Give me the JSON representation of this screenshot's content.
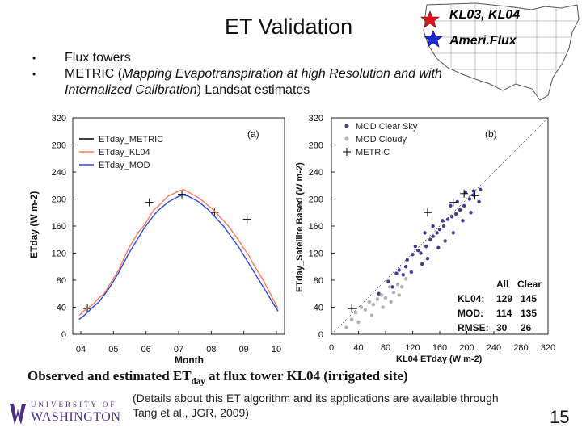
{
  "slide": {
    "title": "ET Validation",
    "bullets": [
      {
        "text": "Flux towers"
      },
      {
        "pre": "METRIC (",
        "italic": "Mapping Evapotranspiration at high Resolution and with Internalized Calibration",
        "post": ") Landsat estimates"
      }
    ],
    "caption": {
      "pre": "Observed and estimated ET",
      "sub": "day",
      "post": " at flux tower KL04 (irrigated site)"
    },
    "details": "(Details about this ET algorithm and its applications are available through Tang et al., JGR, 2009)",
    "page_number": "15",
    "logo": {
      "top": "UNIVERSITY OF",
      "bottom": "WASHINGTON"
    }
  },
  "map": {
    "red_label": "KL03, KL04",
    "blue_label": "Ameri.Flux",
    "colors": {
      "red_star": "#e0141e",
      "blue_star": "#1a2ad8"
    }
  },
  "chart_data": [
    {
      "type": "line",
      "panel": "(a)",
      "xlabel": "Month",
      "ylabel": "ETday (W m-2)",
      "x_ticks": [
        "04",
        "05",
        "06",
        "07",
        "08",
        "09",
        "10"
      ],
      "y_ticks": [
        0,
        40,
        80,
        120,
        160,
        200,
        240,
        280,
        320
      ],
      "ylim": [
        0,
        320
      ],
      "series": [
        {
          "name": "ETday_METRIC",
          "color": "#000000",
          "points": [
            [
              0.2,
              38
            ],
            [
              2.1,
              195
            ],
            [
              3.1,
              207
            ],
            [
              4.1,
              180
            ],
            [
              5.1,
              170
            ]
          ]
        },
        {
          "name": "ETday_KL04",
          "color": "#ff7a5a",
          "values": [
            28,
            35,
            40,
            46,
            54,
            60,
            72,
            84,
            96,
            112,
            128,
            140,
            152,
            160,
            172,
            184,
            190,
            198,
            205,
            208,
            212,
            214,
            210,
            206,
            202,
            196,
            190,
            184,
            176,
            168,
            160,
            150,
            140,
            128,
            118,
            104,
            92,
            80,
            66,
            52,
            38
          ]
        },
        {
          "name": "ETday_MOD",
          "color": "#2a4bd8",
          "values": [
            22,
            28,
            35,
            42,
            48,
            58,
            68,
            80,
            92,
            106,
            120,
            132,
            144,
            156,
            166,
            176,
            184,
            190,
            196,
            200,
            204,
            206,
            204,
            200,
            196,
            190,
            184,
            176,
            168,
            160,
            150,
            140,
            130,
            118,
            106,
            94,
            82,
            70,
            58,
            46,
            34
          ]
        }
      ]
    },
    {
      "type": "scatter",
      "panel": "(b)",
      "xlabel": "KL04 ETday (W m-2)",
      "ylabel": "ETday_Satellite Based (W m-2)",
      "x_ticks": [
        0,
        40,
        80,
        120,
        160,
        200,
        240,
        280,
        320
      ],
      "y_ticks": [
        0,
        40,
        80,
        120,
        160,
        200,
        240,
        280,
        320
      ],
      "xlim": [
        0,
        320
      ],
      "ylim": [
        0,
        320
      ],
      "series": [
        {
          "name": "MOD Clear Sky",
          "color": "#4a3a8e",
          "points": [
            [
              70,
              60
            ],
            [
              84,
              78
            ],
            [
              96,
              90
            ],
            [
              100,
              95
            ],
            [
              112,
              110
            ],
            [
              120,
              118
            ],
            [
              128,
              124
            ],
            [
              132,
              120
            ],
            [
              140,
              130
            ],
            [
              146,
              140
            ],
            [
              150,
              145
            ],
            [
              156,
              150
            ],
            [
              160,
              155
            ],
            [
              166,
              160
            ],
            [
              172,
              170
            ],
            [
              178,
              174
            ],
            [
              184,
              178
            ],
            [
              190,
              184
            ],
            [
              196,
              190
            ],
            [
              204,
              200
            ],
            [
              210,
              206
            ],
            [
              220,
              214
            ],
            [
              110,
              100
            ],
            [
              124,
              130
            ],
            [
              138,
              150
            ],
            [
              150,
              160
            ],
            [
              164,
              168
            ],
            [
              176,
              190
            ],
            [
              186,
              196
            ],
            [
              198,
              210
            ],
            [
              210,
              212
            ],
            [
              106,
              88
            ],
            [
              90,
              70
            ],
            [
              118,
              92
            ],
            [
              134,
              104
            ],
            [
              142,
              112
            ],
            [
              158,
              128
            ],
            [
              168,
              138
            ],
            [
              180,
              150
            ],
            [
              194,
              168
            ],
            [
              206,
              180
            ],
            [
              218,
              196
            ]
          ]
        },
        {
          "name": "MOD Cloudy",
          "color": "#b0b0b0",
          "points": [
            [
              22,
              10
            ],
            [
              30,
              22
            ],
            [
              36,
              32
            ],
            [
              44,
              40
            ],
            [
              50,
              36
            ],
            [
              56,
              48
            ],
            [
              62,
              44
            ],
            [
              68,
              52
            ],
            [
              74,
              58
            ],
            [
              80,
              54
            ],
            [
              86,
              70
            ],
            [
              92,
              62
            ],
            [
              98,
              74
            ],
            [
              104,
              70
            ],
            [
              110,
              82
            ],
            [
              60,
              28
            ],
            [
              40,
              18
            ],
            [
              76,
              40
            ],
            [
              88,
              48
            ],
            [
              100,
              58
            ]
          ]
        },
        {
          "name": "METRIC",
          "color": "#000000",
          "points": [
            [
              30,
              38
            ],
            [
              142,
              180
            ],
            [
              196,
              208
            ],
            [
              212,
              205
            ],
            [
              180,
              195
            ]
          ]
        }
      ],
      "stats": {
        "headers": [
          "All",
          "Clear"
        ],
        "rows": [
          {
            "label": "KL04:",
            "all": "129",
            "clear": "145"
          },
          {
            "label": "MOD:",
            "all": "114",
            "clear": "135"
          },
          {
            "label": "RMSE:",
            "all": "30",
            "clear": "26"
          }
        ]
      }
    }
  ]
}
